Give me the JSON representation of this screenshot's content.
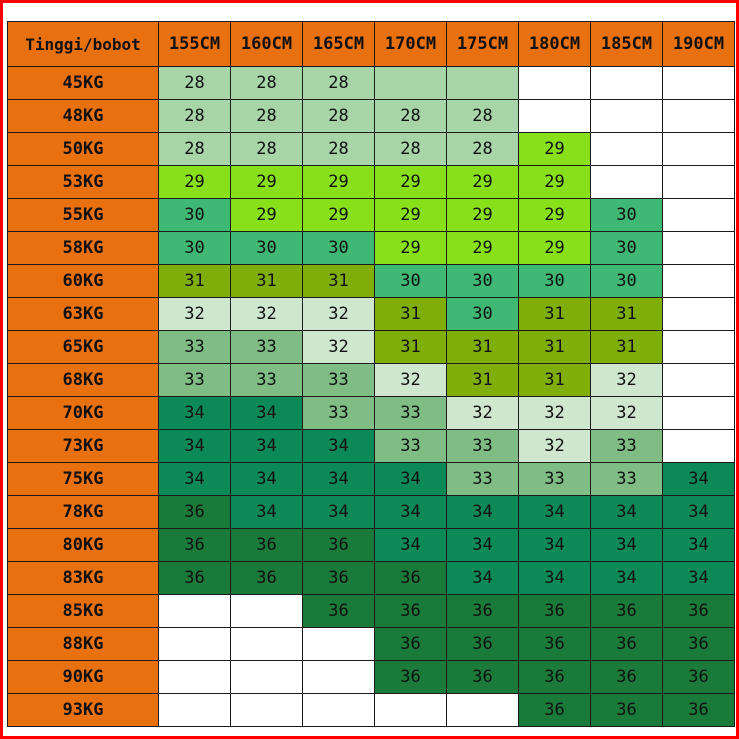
{
  "header": {
    "corner_label": "Tinggi/bobot",
    "columns": [
      "155CM",
      "160CM",
      "165CM",
      "170CM",
      "175CM",
      "180CM",
      "185CM",
      "190CM"
    ]
  },
  "rows": [
    {
      "label": "45KG",
      "cells": [
        "28",
        "28",
        "28",
        "",
        "",
        "",
        "",
        ""
      ],
      "colors": [
        "c28",
        "c28",
        "c28",
        "c28",
        "c28",
        "cempty",
        "cempty",
        "cempty"
      ]
    },
    {
      "label": "48KG",
      "cells": [
        "28",
        "28",
        "28",
        "28",
        "28",
        "",
        "",
        ""
      ],
      "colors": [
        "c28",
        "c28",
        "c28",
        "c28",
        "c28",
        "cempty",
        "cempty",
        "cempty"
      ]
    },
    {
      "label": "50KG",
      "cells": [
        "28",
        "28",
        "28",
        "28",
        "28",
        "29",
        "",
        ""
      ],
      "colors": [
        "c28",
        "c28",
        "c28",
        "c28",
        "c28",
        "c29",
        "cempty",
        "cempty"
      ]
    },
    {
      "label": "53KG",
      "cells": [
        "29",
        "29",
        "29",
        "29",
        "29",
        "29",
        "",
        ""
      ],
      "colors": [
        "c29",
        "c29",
        "c29",
        "c29",
        "c29",
        "c29",
        "cempty",
        "cempty"
      ]
    },
    {
      "label": "55KG",
      "cells": [
        "30",
        "29",
        "29",
        "29",
        "29",
        "29",
        "30",
        ""
      ],
      "colors": [
        "c30",
        "c29",
        "c29",
        "c29",
        "c29",
        "c29",
        "c30",
        "cempty"
      ]
    },
    {
      "label": "58KG",
      "cells": [
        "30",
        "30",
        "30",
        "29",
        "29",
        "29",
        "30",
        ""
      ],
      "colors": [
        "c30",
        "c30",
        "c30",
        "c29",
        "c29",
        "c29",
        "c30",
        "cempty"
      ]
    },
    {
      "label": "60KG",
      "cells": [
        "31",
        "31",
        "31",
        "30",
        "30",
        "30",
        "30",
        ""
      ],
      "colors": [
        "c31",
        "c31",
        "c31",
        "c30",
        "c30",
        "c30",
        "c30",
        "cempty"
      ]
    },
    {
      "label": "63KG",
      "cells": [
        "32",
        "32",
        "32",
        "31",
        "30",
        "31",
        "31",
        ""
      ],
      "colors": [
        "c32",
        "c32",
        "c32",
        "c31",
        "c30",
        "c31",
        "c31",
        "cempty"
      ]
    },
    {
      "label": "65KG",
      "cells": [
        "33",
        "33",
        "32",
        "31",
        "31",
        "31",
        "31",
        ""
      ],
      "colors": [
        "c33",
        "c33",
        "c32",
        "c31",
        "c31",
        "c31",
        "c31",
        "cempty"
      ]
    },
    {
      "label": "68KG",
      "cells": [
        "33",
        "33",
        "33",
        "32",
        "31",
        "31",
        "32",
        ""
      ],
      "colors": [
        "c33",
        "c33",
        "c33",
        "c32",
        "c31",
        "c31",
        "c32",
        "cempty"
      ]
    },
    {
      "label": "70KG",
      "cells": [
        "34",
        "34",
        "33",
        "33",
        "32",
        "32",
        "32",
        ""
      ],
      "colors": [
        "c34",
        "c34",
        "c33",
        "c33",
        "c32",
        "c32",
        "c32",
        "cempty"
      ]
    },
    {
      "label": "73KG",
      "cells": [
        "34",
        "34",
        "34",
        "33",
        "33",
        "32",
        "33",
        ""
      ],
      "colors": [
        "c34",
        "c34",
        "c34",
        "c33",
        "c33",
        "c32",
        "c33",
        "cempty"
      ]
    },
    {
      "label": "75KG",
      "cells": [
        "34",
        "34",
        "34",
        "34",
        "33",
        "33",
        "33",
        "34"
      ],
      "colors": [
        "c34",
        "c34",
        "c34",
        "c34",
        "c33",
        "c33",
        "c33",
        "c34"
      ]
    },
    {
      "label": "78KG",
      "cells": [
        "36",
        "34",
        "34",
        "34",
        "34",
        "34",
        "34",
        "34"
      ],
      "colors": [
        "c36",
        "c34",
        "c34",
        "c34",
        "c34",
        "c34",
        "c34",
        "c34"
      ]
    },
    {
      "label": "80KG",
      "cells": [
        "36",
        "36",
        "36",
        "34",
        "34",
        "34",
        "34",
        "34"
      ],
      "colors": [
        "c36",
        "c36",
        "c36",
        "c34",
        "c34",
        "c34",
        "c34",
        "c34"
      ]
    },
    {
      "label": "83KG",
      "cells": [
        "36",
        "36",
        "36",
        "36",
        "34",
        "34",
        "34",
        "34"
      ],
      "colors": [
        "c36",
        "c36",
        "c36",
        "c36",
        "c34",
        "c34",
        "c34",
        "c34"
      ]
    },
    {
      "label": "85KG",
      "cells": [
        "",
        "",
        "36",
        "36",
        "36",
        "36",
        "36",
        "36"
      ],
      "colors": [
        "cempty",
        "cempty",
        "c36",
        "c36",
        "c36",
        "c36",
        "c36",
        "c36"
      ]
    },
    {
      "label": "88KG",
      "cells": [
        "",
        "",
        "",
        "36",
        "36",
        "36",
        "36",
        "36"
      ],
      "colors": [
        "cempty",
        "cempty",
        "cempty",
        "c36",
        "c36",
        "c36",
        "c36",
        "c36"
      ]
    },
    {
      "label": "90KG",
      "cells": [
        "",
        "",
        "",
        "36",
        "36",
        "36",
        "36",
        "36"
      ],
      "colors": [
        "cempty",
        "cempty",
        "cempty",
        "c36",
        "c36",
        "c36",
        "c36",
        "c36"
      ]
    },
    {
      "label": "93KG",
      "cells": [
        "",
        "",
        "",
        "",
        "",
        "36",
        "36",
        "36"
      ],
      "colors": [
        "cempty",
        "cempty",
        "cempty",
        "cempty",
        "cempty",
        "c36",
        "c36",
        "c36"
      ]
    }
  ],
  "colors": {
    "header_orange": "#e8700f",
    "border_red": "#ff0000",
    "size_28": "#a8d5a8",
    "size_29": "#88e01a",
    "size_30": "#3eb872",
    "size_31": "#7fae08",
    "size_32": "#cfe6cf",
    "size_33": "#7fbd85",
    "size_34": "#0b8a58",
    "size_36": "#1a7a3a"
  }
}
